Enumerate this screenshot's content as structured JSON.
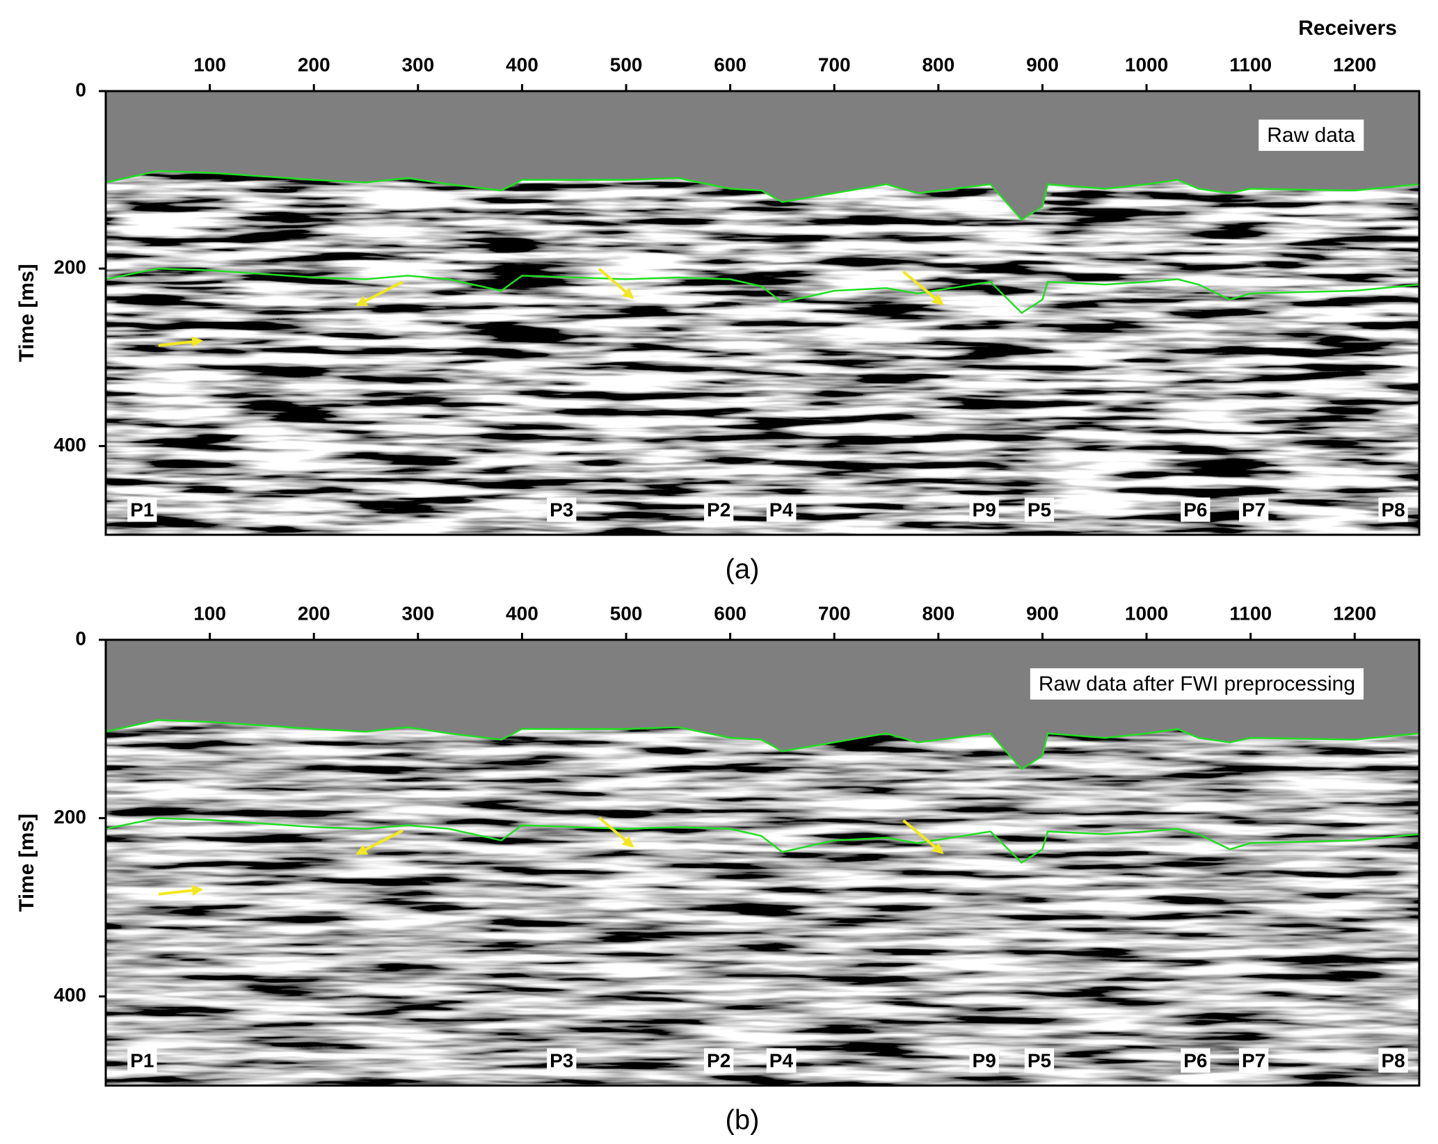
{
  "chart_data": [
    {
      "type": "seismic",
      "xlabel": "Receivers",
      "ylabel": "Time [ms]",
      "panel": "(a)",
      "annotation": "Raw data",
      "xlim": [
        0,
        1262
      ],
      "xticks": [
        100,
        200,
        300,
        400,
        500,
        600,
        700,
        800,
        900,
        1000,
        1100,
        1200
      ],
      "ylim": [
        0,
        500
      ],
      "yticks": [
        0,
        200,
        400
      ],
      "x": [
        0,
        50,
        100,
        200,
        250,
        290,
        330,
        380,
        400,
        500,
        550,
        600,
        630,
        650,
        700,
        750,
        780,
        850,
        880,
        900,
        905,
        960,
        1000,
        1030,
        1050,
        1080,
        1100,
        1200,
        1262
      ],
      "series": [
        {
          "color": "#22dd22",
          "values": [
            103,
            90,
            92,
            100,
            103,
            98,
            105,
            112,
            100,
            100,
            98,
            110,
            112,
            125,
            115,
            105,
            115,
            105,
            145,
            130,
            105,
            110,
            105,
            100,
            110,
            115,
            110,
            112,
            105
          ]
        },
        {
          "color": "#22dd22",
          "values": [
            212,
            200,
            202,
            210,
            212,
            208,
            212,
            225,
            208,
            212,
            210,
            212,
            220,
            238,
            225,
            222,
            228,
            215,
            250,
            235,
            215,
            218,
            215,
            212,
            218,
            235,
            228,
            225,
            218
          ]
        }
      ],
      "markers": [
        {
          "label": "P1",
          "x": 35
        },
        {
          "label": "P3",
          "x": 438
        },
        {
          "label": "P2",
          "x": 589
        },
        {
          "label": "P4",
          "x": 649
        },
        {
          "label": "P9",
          "x": 844
        },
        {
          "label": "P5",
          "x": 897
        },
        {
          "label": "P6",
          "x": 1047
        },
        {
          "label": "P7",
          "x": 1103
        },
        {
          "label": "P8",
          "x": 1237
        }
      ]
    },
    {
      "type": "seismic",
      "ylabel": "Time [ms]",
      "panel": "(b)",
      "annotation": "Raw data after FWI preprocessing",
      "xlim": [
        0,
        1262
      ],
      "xticks": [
        100,
        200,
        300,
        400,
        500,
        600,
        700,
        800,
        900,
        1000,
        1100,
        1200
      ],
      "ylim": [
        0,
        500
      ],
      "yticks": [
        0,
        200,
        400
      ],
      "x": [
        0,
        50,
        100,
        200,
        250,
        290,
        330,
        380,
        400,
        500,
        550,
        600,
        630,
        650,
        700,
        750,
        780,
        850,
        880,
        900,
        905,
        960,
        1000,
        1030,
        1050,
        1080,
        1100,
        1200,
        1262
      ],
      "series": [
        {
          "color": "#22dd22",
          "values": [
            103,
            90,
            92,
            100,
            103,
            98,
            105,
            112,
            100,
            100,
            98,
            110,
            112,
            125,
            115,
            105,
            115,
            105,
            145,
            130,
            105,
            110,
            105,
            100,
            110,
            115,
            110,
            112,
            105
          ]
        },
        {
          "color": "#22dd22",
          "values": [
            212,
            200,
            202,
            210,
            212,
            208,
            212,
            225,
            208,
            212,
            210,
            212,
            220,
            238,
            225,
            222,
            228,
            215,
            250,
            235,
            215,
            218,
            215,
            212,
            218,
            235,
            228,
            225,
            218
          ]
        }
      ],
      "markers": [
        {
          "label": "P1",
          "x": 35
        },
        {
          "label": "P3",
          "x": 438
        },
        {
          "label": "P2",
          "x": 589
        },
        {
          "label": "P4",
          "x": 649
        },
        {
          "label": "P9",
          "x": 844
        },
        {
          "label": "P5",
          "x": 897
        },
        {
          "label": "P6",
          "x": 1047
        },
        {
          "label": "P7",
          "x": 1103
        },
        {
          "label": "P8",
          "x": 1237
        }
      ]
    }
  ]
}
